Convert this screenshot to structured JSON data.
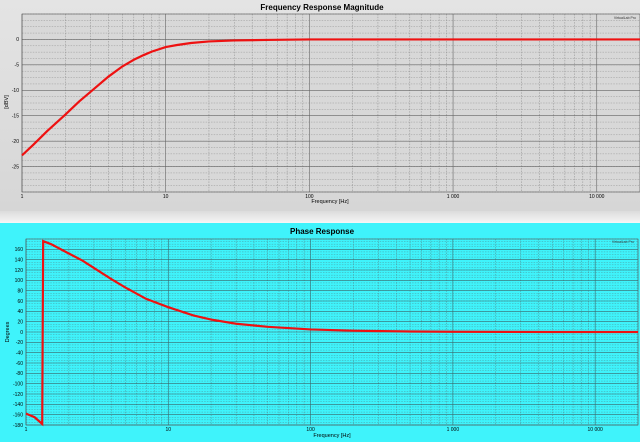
{
  "chart_data": [
    {
      "type": "line",
      "title": "Frequency Response Magnitude",
      "xlabel": "Frequency [Hz]",
      "ylabel": "[dBV]",
      "xscale": "log",
      "xlim": [
        1,
        20000
      ],
      "ylim": [
        -30,
        5
      ],
      "xticks": [
        1,
        10,
        100,
        1000,
        10000
      ],
      "xtick_labels": [
        "1",
        "10",
        "100",
        "1 000",
        "10 000"
      ],
      "yticks": [
        0,
        -5,
        -10,
        -15,
        -20,
        -25
      ],
      "ytick_labels": [
        "0",
        "-5",
        "-10",
        "-15",
        "-20",
        "-25"
      ],
      "grid": true,
      "badge": "VirtualLab Pro",
      "series": [
        {
          "color": "#ee1111",
          "x": [
            1,
            1.2,
            1.5,
            2,
            2.5,
            3,
            4,
            5,
            6,
            7,
            8,
            10,
            12,
            15,
            20,
            30,
            50,
            100,
            200,
            1000,
            5000,
            20000
          ],
          "y": [
            -22.8,
            -20.7,
            -18.0,
            -14.8,
            -12.2,
            -10.3,
            -7.3,
            -5.3,
            -4.0,
            -3.1,
            -2.4,
            -1.5,
            -1.1,
            -0.7,
            -0.4,
            -0.2,
            -0.1,
            0,
            0,
            0,
            0,
            0
          ]
        }
      ]
    },
    {
      "type": "line",
      "title": "Phase Response",
      "xlabel": "Frequency [Hz]",
      "ylabel": "Degrees",
      "xscale": "log",
      "xlim": [
        1,
        20000
      ],
      "ylim": [
        -180,
        180
      ],
      "xticks": [
        1,
        10,
        100,
        1000,
        10000
      ],
      "xtick_labels": [
        "1",
        "10",
        "100",
        "1 000",
        "10 000"
      ],
      "yticks": [
        160,
        140,
        120,
        100,
        80,
        60,
        40,
        20,
        0,
        -20,
        -40,
        -60,
        -80,
        -100,
        -120,
        -140,
        -160,
        -180
      ],
      "ytick_labels": [
        "160",
        "140",
        "120",
        "100",
        "80",
        "60",
        "40",
        "20",
        "0",
        "-20",
        "-40",
        "-60",
        "-80",
        "-100",
        "-120",
        "-140",
        "-160",
        "-180"
      ],
      "grid": true,
      "badge": "VirtualLab Pro",
      "series": [
        {
          "color": "#ee1111",
          "x": [
            1,
            1.15,
            1.3,
            1.32,
            1.5,
            2,
            2.5,
            3,
            4,
            5,
            7,
            10,
            15,
            20,
            30,
            50,
            100,
            200,
            500,
            1000,
            5000,
            20000
          ],
          "y": [
            -158,
            -165,
            -178,
            176,
            170,
            152,
            138,
            124,
            102,
            86,
            64,
            48,
            32,
            24,
            16,
            10,
            5,
            2.5,
            1,
            0.5,
            0,
            0
          ]
        }
      ]
    }
  ]
}
